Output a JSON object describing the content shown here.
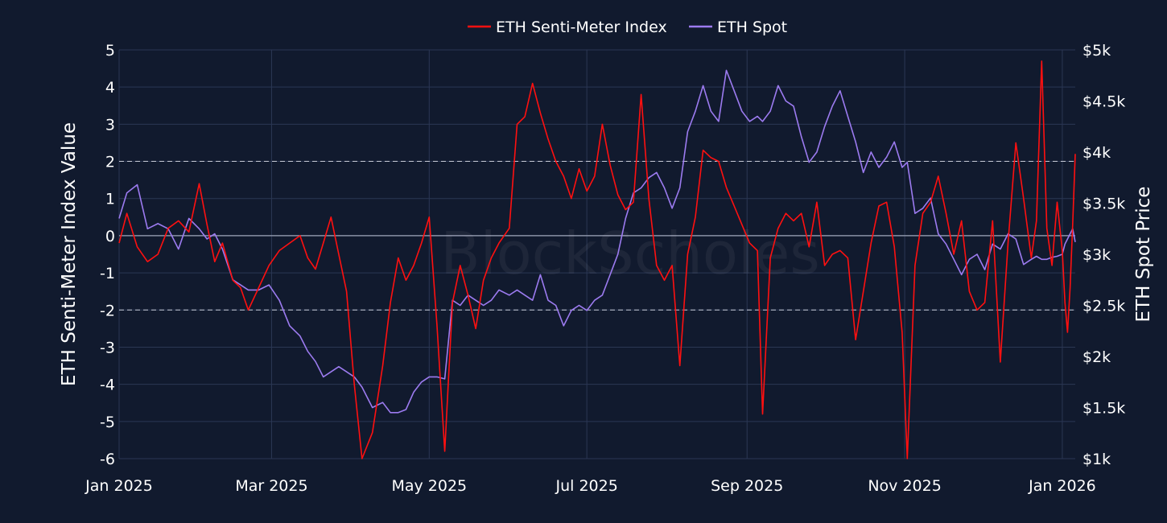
{
  "chart_data": {
    "type": "line",
    "title": "",
    "watermark": "BlockScholes",
    "xlabel": "",
    "ylabel_left": "ETH Senti-Meter Index Value",
    "ylabel_right": "ETH Spot Price",
    "x_range": [
      "2025-01-01",
      "2026-01-06"
    ],
    "x_ticks": [
      "2025-01-01",
      "2025-03-01",
      "2025-05-01",
      "2025-07-01",
      "2025-09-01",
      "2025-11-01",
      "2026-01-01"
    ],
    "x_tick_labels": [
      "Jan 2025",
      "Mar 2025",
      "May 2025",
      "Jul 2025",
      "Sep 2025",
      "Nov 2025",
      "Jan 2026"
    ],
    "ylim_left": [
      -6,
      5
    ],
    "y_ticks_left": [
      5,
      4,
      3,
      2,
      1,
      0,
      -1,
      -2,
      -3,
      -4,
      -5,
      -6
    ],
    "y_tick_labels_left": [
      "5",
      "4",
      "3",
      "2",
      "1",
      "0",
      "-1",
      "-2",
      "-3",
      "-4",
      "-5",
      "-6"
    ],
    "ylim_right": [
      1000,
      5000
    ],
    "y_ticks_right": [
      5000,
      4500,
      4000,
      3500,
      3000,
      2500,
      2000,
      1500,
      1000
    ],
    "y_tick_labels_right": [
      "$5k",
      "$4.5k",
      "$4k",
      "$3.5k",
      "$3k",
      "$2.5k",
      "$2k",
      "$1.5k",
      "$1k"
    ],
    "reference_lines_left": [
      2,
      -2
    ],
    "legend": {
      "position": "top-center"
    },
    "grid": true,
    "colors": {
      "background": "#111a2e",
      "grid": "#2b3754",
      "senti": "#ff1010",
      "spot": "#9c7bf0",
      "reference": "#c8ccd8",
      "zero": "#8a91a6"
    },
    "series": [
      {
        "name": "ETH Senti-Meter Index",
        "axis": "left",
        "color": "#ff1010",
        "points": [
          [
            "2025-01-01",
            -0.2
          ],
          [
            "2025-01-04",
            0.6
          ],
          [
            "2025-01-08",
            -0.3
          ],
          [
            "2025-01-12",
            -0.7
          ],
          [
            "2025-01-16",
            -0.5
          ],
          [
            "2025-01-20",
            0.2
          ],
          [
            "2025-01-24",
            0.4
          ],
          [
            "2025-01-28",
            0.1
          ],
          [
            "2025-02-01",
            1.4
          ],
          [
            "2025-02-04",
            0.3
          ],
          [
            "2025-02-07",
            -0.7
          ],
          [
            "2025-02-10",
            -0.2
          ],
          [
            "2025-02-14",
            -1.2
          ],
          [
            "2025-02-17",
            -1.4
          ],
          [
            "2025-02-20",
            -2.0
          ],
          [
            "2025-02-24",
            -1.4
          ],
          [
            "2025-02-28",
            -0.8
          ],
          [
            "2025-03-04",
            -0.4
          ],
          [
            "2025-03-08",
            -0.2
          ],
          [
            "2025-03-12",
            0.0
          ],
          [
            "2025-03-15",
            -0.6
          ],
          [
            "2025-03-18",
            -0.9
          ],
          [
            "2025-03-21",
            -0.2
          ],
          [
            "2025-03-24",
            0.5
          ],
          [
            "2025-03-27",
            -0.5
          ],
          [
            "2025-03-30",
            -1.5
          ],
          [
            "2025-04-02",
            -4.0
          ],
          [
            "2025-04-05",
            -6.0
          ],
          [
            "2025-04-09",
            -5.3
          ],
          [
            "2025-04-13",
            -3.5
          ],
          [
            "2025-04-16",
            -1.8
          ],
          [
            "2025-04-19",
            -0.6
          ],
          [
            "2025-04-22",
            -1.2
          ],
          [
            "2025-04-25",
            -0.8
          ],
          [
            "2025-04-28",
            -0.2
          ],
          [
            "2025-05-01",
            0.5
          ],
          [
            "2025-05-04",
            -2.4
          ],
          [
            "2025-05-07",
            -5.8
          ],
          [
            "2025-05-10",
            -1.8
          ],
          [
            "2025-05-13",
            -0.8
          ],
          [
            "2025-05-16",
            -1.6
          ],
          [
            "2025-05-19",
            -2.5
          ],
          [
            "2025-05-22",
            -1.2
          ],
          [
            "2025-05-25",
            -0.6
          ],
          [
            "2025-05-28",
            -0.2
          ],
          [
            "2025-06-01",
            0.2
          ],
          [
            "2025-06-04",
            3.0
          ],
          [
            "2025-06-07",
            3.2
          ],
          [
            "2025-06-10",
            4.1
          ],
          [
            "2025-06-13",
            3.3
          ],
          [
            "2025-06-16",
            2.6
          ],
          [
            "2025-06-19",
            2.0
          ],
          [
            "2025-06-22",
            1.6
          ],
          [
            "2025-06-25",
            1.0
          ],
          [
            "2025-06-28",
            1.8
          ],
          [
            "2025-07-01",
            1.2
          ],
          [
            "2025-07-04",
            1.6
          ],
          [
            "2025-07-07",
            3.0
          ],
          [
            "2025-07-10",
            1.9
          ],
          [
            "2025-07-13",
            1.1
          ],
          [
            "2025-07-16",
            0.7
          ],
          [
            "2025-07-19",
            0.9
          ],
          [
            "2025-07-22",
            3.8
          ],
          [
            "2025-07-25",
            1.0
          ],
          [
            "2025-07-28",
            -0.8
          ],
          [
            "2025-07-31",
            -1.2
          ],
          [
            "2025-08-03",
            -0.8
          ],
          [
            "2025-08-06",
            -3.5
          ],
          [
            "2025-08-09",
            -0.5
          ],
          [
            "2025-08-12",
            0.5
          ],
          [
            "2025-08-15",
            2.3
          ],
          [
            "2025-08-18",
            2.1
          ],
          [
            "2025-08-21",
            2.0
          ],
          [
            "2025-08-24",
            1.3
          ],
          [
            "2025-08-27",
            0.8
          ],
          [
            "2025-08-30",
            0.3
          ],
          [
            "2025-09-02",
            -0.2
          ],
          [
            "2025-09-05",
            -0.4
          ],
          [
            "2025-09-07",
            -4.8
          ],
          [
            "2025-09-10",
            -0.6
          ],
          [
            "2025-09-13",
            0.2
          ],
          [
            "2025-09-16",
            0.6
          ],
          [
            "2025-09-19",
            0.4
          ],
          [
            "2025-09-22",
            0.6
          ],
          [
            "2025-09-25",
            -0.3
          ],
          [
            "2025-09-28",
            0.9
          ],
          [
            "2025-10-01",
            -0.8
          ],
          [
            "2025-10-04",
            -0.5
          ],
          [
            "2025-10-07",
            -0.4
          ],
          [
            "2025-10-10",
            -0.6
          ],
          [
            "2025-10-13",
            -2.8
          ],
          [
            "2025-10-16",
            -1.5
          ],
          [
            "2025-10-19",
            -0.2
          ],
          [
            "2025-10-22",
            0.8
          ],
          [
            "2025-10-25",
            0.9
          ],
          [
            "2025-10-28",
            -0.3
          ],
          [
            "2025-10-31",
            -2.6
          ],
          [
            "2025-11-02",
            -6.0
          ],
          [
            "2025-11-05",
            -0.8
          ],
          [
            "2025-11-08",
            0.6
          ],
          [
            "2025-11-11",
            0.9
          ],
          [
            "2025-11-14",
            1.6
          ],
          [
            "2025-11-17",
            0.6
          ],
          [
            "2025-11-20",
            -0.5
          ],
          [
            "2025-11-23",
            0.4
          ],
          [
            "2025-11-26",
            -1.5
          ],
          [
            "2025-11-29",
            -2.0
          ],
          [
            "2025-12-02",
            -1.8
          ],
          [
            "2025-12-05",
            0.4
          ],
          [
            "2025-12-08",
            -3.4
          ],
          [
            "2025-12-11",
            -0.2
          ],
          [
            "2025-12-14",
            2.5
          ],
          [
            "2025-12-17",
            1.0
          ],
          [
            "2025-12-20",
            -0.6
          ],
          [
            "2025-12-22",
            0.4
          ],
          [
            "2025-12-24",
            4.7
          ],
          [
            "2025-12-26",
            0.2
          ],
          [
            "2025-12-28",
            -0.8
          ],
          [
            "2025-12-30",
            0.9
          ],
          [
            "2026-01-01",
            -0.4
          ],
          [
            "2026-01-02",
            -1.8
          ],
          [
            "2026-01-03",
            -2.6
          ],
          [
            "2026-01-04",
            -1.4
          ],
          [
            "2026-01-05",
            0.3
          ],
          [
            "2026-01-06",
            2.2
          ]
        ]
      },
      {
        "name": "ETH Spot",
        "axis": "right",
        "color": "#9c7bf0",
        "points": [
          [
            "2025-01-01",
            3350
          ],
          [
            "2025-01-04",
            3600
          ],
          [
            "2025-01-08",
            3680
          ],
          [
            "2025-01-12",
            3250
          ],
          [
            "2025-01-16",
            3300
          ],
          [
            "2025-01-20",
            3250
          ],
          [
            "2025-01-24",
            3050
          ],
          [
            "2025-01-28",
            3350
          ],
          [
            "2025-02-01",
            3250
          ],
          [
            "2025-02-04",
            3150
          ],
          [
            "2025-02-07",
            3200
          ],
          [
            "2025-02-10",
            3050
          ],
          [
            "2025-02-14",
            2750
          ],
          [
            "2025-02-17",
            2700
          ],
          [
            "2025-02-20",
            2650
          ],
          [
            "2025-02-24",
            2650
          ],
          [
            "2025-02-28",
            2700
          ],
          [
            "2025-03-04",
            2550
          ],
          [
            "2025-03-08",
            2300
          ],
          [
            "2025-03-12",
            2200
          ],
          [
            "2025-03-15",
            2050
          ],
          [
            "2025-03-18",
            1950
          ],
          [
            "2025-03-21",
            1800
          ],
          [
            "2025-03-24",
            1850
          ],
          [
            "2025-03-27",
            1900
          ],
          [
            "2025-03-30",
            1850
          ],
          [
            "2025-04-02",
            1800
          ],
          [
            "2025-04-05",
            1700
          ],
          [
            "2025-04-09",
            1500
          ],
          [
            "2025-04-13",
            1550
          ],
          [
            "2025-04-16",
            1450
          ],
          [
            "2025-04-19",
            1450
          ],
          [
            "2025-04-22",
            1480
          ],
          [
            "2025-04-25",
            1650
          ],
          [
            "2025-04-28",
            1750
          ],
          [
            "2025-05-01",
            1800
          ],
          [
            "2025-05-04",
            1800
          ],
          [
            "2025-05-07",
            1780
          ],
          [
            "2025-05-10",
            2550
          ],
          [
            "2025-05-13",
            2500
          ],
          [
            "2025-05-16",
            2600
          ],
          [
            "2025-05-19",
            2550
          ],
          [
            "2025-05-22",
            2500
          ],
          [
            "2025-05-25",
            2550
          ],
          [
            "2025-05-28",
            2650
          ],
          [
            "2025-06-01",
            2600
          ],
          [
            "2025-06-04",
            2650
          ],
          [
            "2025-06-07",
            2600
          ],
          [
            "2025-06-10",
            2550
          ],
          [
            "2025-06-13",
            2800
          ],
          [
            "2025-06-16",
            2550
          ],
          [
            "2025-06-19",
            2500
          ],
          [
            "2025-06-22",
            2300
          ],
          [
            "2025-06-25",
            2450
          ],
          [
            "2025-06-28",
            2500
          ],
          [
            "2025-07-01",
            2450
          ],
          [
            "2025-07-04",
            2550
          ],
          [
            "2025-07-07",
            2600
          ],
          [
            "2025-07-10",
            2800
          ],
          [
            "2025-07-13",
            3000
          ],
          [
            "2025-07-16",
            3350
          ],
          [
            "2025-07-19",
            3600
          ],
          [
            "2025-07-22",
            3650
          ],
          [
            "2025-07-25",
            3750
          ],
          [
            "2025-07-28",
            3800
          ],
          [
            "2025-07-31",
            3650
          ],
          [
            "2025-08-03",
            3450
          ],
          [
            "2025-08-06",
            3650
          ],
          [
            "2025-08-09",
            4200
          ],
          [
            "2025-08-12",
            4400
          ],
          [
            "2025-08-15",
            4650
          ],
          [
            "2025-08-18",
            4400
          ],
          [
            "2025-08-21",
            4300
          ],
          [
            "2025-08-24",
            4800
          ],
          [
            "2025-08-27",
            4600
          ],
          [
            "2025-08-30",
            4400
          ],
          [
            "2025-09-02",
            4300
          ],
          [
            "2025-09-05",
            4350
          ],
          [
            "2025-09-07",
            4300
          ],
          [
            "2025-09-10",
            4400
          ],
          [
            "2025-09-13",
            4650
          ],
          [
            "2025-09-16",
            4500
          ],
          [
            "2025-09-19",
            4450
          ],
          [
            "2025-09-22",
            4150
          ],
          [
            "2025-09-25",
            3900
          ],
          [
            "2025-09-28",
            4000
          ],
          [
            "2025-10-01",
            4250
          ],
          [
            "2025-10-04",
            4450
          ],
          [
            "2025-10-07",
            4600
          ],
          [
            "2025-10-10",
            4350
          ],
          [
            "2025-10-13",
            4100
          ],
          [
            "2025-10-16",
            3800
          ],
          [
            "2025-10-19",
            4000
          ],
          [
            "2025-10-22",
            3850
          ],
          [
            "2025-10-25",
            3950
          ],
          [
            "2025-10-28",
            4100
          ],
          [
            "2025-10-31",
            3850
          ],
          [
            "2025-11-02",
            3900
          ],
          [
            "2025-11-05",
            3400
          ],
          [
            "2025-11-08",
            3450
          ],
          [
            "2025-11-11",
            3550
          ],
          [
            "2025-11-14",
            3200
          ],
          [
            "2025-11-17",
            3100
          ],
          [
            "2025-11-20",
            2950
          ],
          [
            "2025-11-23",
            2800
          ],
          [
            "2025-11-26",
            2950
          ],
          [
            "2025-11-29",
            3000
          ],
          [
            "2025-12-02",
            2850
          ],
          [
            "2025-12-05",
            3100
          ],
          [
            "2025-12-08",
            3050
          ],
          [
            "2025-12-11",
            3200
          ],
          [
            "2025-12-14",
            3150
          ],
          [
            "2025-12-17",
            2900
          ],
          [
            "2025-12-20",
            2950
          ],
          [
            "2025-12-22",
            2980
          ],
          [
            "2025-12-24",
            2950
          ],
          [
            "2025-12-26",
            2950
          ],
          [
            "2025-12-28",
            2970
          ],
          [
            "2025-12-30",
            2980
          ],
          [
            "2026-01-01",
            3000
          ],
          [
            "2026-01-02",
            3100
          ],
          [
            "2026-01-03",
            3150
          ],
          [
            "2026-01-04",
            3200
          ],
          [
            "2026-01-05",
            3250
          ],
          [
            "2026-01-06",
            3120
          ]
        ]
      }
    ]
  }
}
